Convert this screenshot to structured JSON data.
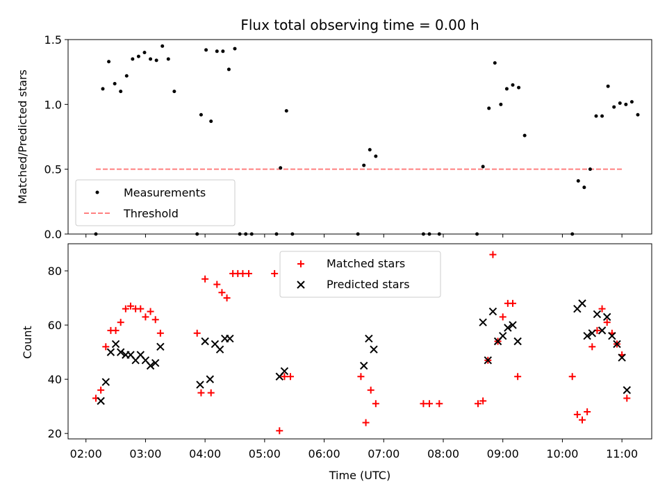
{
  "title": "Flux total observing time = 0.00 h",
  "xlabel": "Time (UTC)",
  "colors": {
    "measurement": "#000000",
    "threshold": "#ff8080",
    "matched": "#ff0000",
    "predicted": "#000000"
  },
  "chart_data": [
    {
      "type": "scatter",
      "ylabel": "Matched/Predicted stars",
      "ylim": [
        0,
        1.5
      ],
      "yticks": [
        "0.0",
        "0.5",
        "1.0",
        "1.5"
      ],
      "legend": {
        "placement": "lower-left",
        "entries": [
          "Measurements",
          "Threshold"
        ]
      },
      "threshold": {
        "value": 0.5,
        "x_range": [
          "02:10",
          "11:00"
        ]
      },
      "series": [
        {
          "name": "Measurements",
          "points": [
            [
              "02:10",
              0.0
            ],
            [
              "02:17",
              1.12
            ],
            [
              "02:23",
              1.33
            ],
            [
              "02:29",
              1.16
            ],
            [
              "02:35",
              1.1
            ],
            [
              "02:41",
              1.22
            ],
            [
              "02:47",
              1.35
            ],
            [
              "02:53",
              1.37
            ],
            [
              "02:59",
              1.4
            ],
            [
              "03:05",
              1.35
            ],
            [
              "03:11",
              1.34
            ],
            [
              "03:17",
              1.45
            ],
            [
              "03:23",
              1.35
            ],
            [
              "03:29",
              1.1
            ],
            [
              "03:52",
              0.0
            ],
            [
              "03:56",
              0.92
            ],
            [
              "04:01",
              1.42
            ],
            [
              "04:06",
              0.87
            ],
            [
              "04:12",
              1.41
            ],
            [
              "04:18",
              1.41
            ],
            [
              "04:24",
              1.27
            ],
            [
              "04:30",
              1.43
            ],
            [
              "04:35",
              0.0
            ],
            [
              "04:41",
              0.0
            ],
            [
              "04:47",
              0.0
            ],
            [
              "05:12",
              0.0
            ],
            [
              "05:16",
              0.51
            ],
            [
              "05:22",
              0.95
            ],
            [
              "05:28",
              0.0
            ],
            [
              "06:34",
              0.0
            ],
            [
              "06:40",
              0.53
            ],
            [
              "06:46",
              0.65
            ],
            [
              "06:52",
              0.6
            ],
            [
              "07:40",
              0.0
            ],
            [
              "07:46",
              0.0
            ],
            [
              "07:56",
              0.0
            ],
            [
              "08:34",
              0.0
            ],
            [
              "08:40",
              0.52
            ],
            [
              "08:46",
              0.97
            ],
            [
              "08:52",
              1.32
            ],
            [
              "08:58",
              1.0
            ],
            [
              "09:04",
              1.12
            ],
            [
              "09:10",
              1.15
            ],
            [
              "09:16",
              1.13
            ],
            [
              "09:22",
              0.76
            ],
            [
              "10:10",
              0.0
            ],
            [
              "10:16",
              0.41
            ],
            [
              "10:22",
              0.36
            ],
            [
              "10:28",
              0.5
            ],
            [
              "10:34",
              0.91
            ],
            [
              "10:40",
              0.91
            ],
            [
              "10:46",
              1.14
            ],
            [
              "10:52",
              0.98
            ],
            [
              "10:58",
              1.01
            ],
            [
              "11:04",
              1.0
            ],
            [
              "11:10",
              1.02
            ],
            [
              "11:16",
              0.92
            ]
          ]
        }
      ]
    },
    {
      "type": "scatter",
      "ylabel": "Count",
      "ylim": [
        18,
        90
      ],
      "yticks": [
        "20",
        "40",
        "60",
        "80"
      ],
      "xticks": [
        "02:00",
        "03:00",
        "04:00",
        "05:00",
        "06:00",
        "07:00",
        "08:00",
        "09:00",
        "10:00",
        "11:00"
      ],
      "xlim": [
        "01:42",
        "11:30"
      ],
      "legend": {
        "placement": "upper-center",
        "entries": [
          "Matched stars",
          "Predicted stars"
        ]
      },
      "series": [
        {
          "name": "Matched stars",
          "points": [
            [
              "02:10",
              33
            ],
            [
              "02:15",
              36
            ],
            [
              "02:20",
              52
            ],
            [
              "02:25",
              58
            ],
            [
              "02:30",
              58
            ],
            [
              "02:35",
              61
            ],
            [
              "02:40",
              66
            ],
            [
              "02:45",
              67
            ],
            [
              "02:50",
              66
            ],
            [
              "02:55",
              66
            ],
            [
              "03:00",
              63
            ],
            [
              "03:05",
              65
            ],
            [
              "03:10",
              62
            ],
            [
              "03:15",
              57
            ],
            [
              "03:52",
              57
            ],
            [
              "03:56",
              35
            ],
            [
              "04:00",
              77
            ],
            [
              "04:06",
              35
            ],
            [
              "04:12",
              75
            ],
            [
              "04:17",
              72
            ],
            [
              "04:22",
              70
            ],
            [
              "04:28",
              79
            ],
            [
              "04:33",
              79
            ],
            [
              "04:38",
              79
            ],
            [
              "04:44",
              79
            ],
            [
              "05:10",
              79
            ],
            [
              "05:15",
              21
            ],
            [
              "05:20",
              41
            ],
            [
              "05:26",
              41
            ],
            [
              "06:37",
              41
            ],
            [
              "06:42",
              24
            ],
            [
              "06:47",
              36
            ],
            [
              "06:52",
              31
            ],
            [
              "07:40",
              31
            ],
            [
              "07:46",
              31
            ],
            [
              "07:56",
              31
            ],
            [
              "08:35",
              31
            ],
            [
              "08:40",
              32
            ],
            [
              "08:45",
              47
            ],
            [
              "08:50",
              86
            ],
            [
              "08:55",
              54
            ],
            [
              "09:00",
              63
            ],
            [
              "09:05",
              68
            ],
            [
              "09:10",
              68
            ],
            [
              "09:15",
              41
            ],
            [
              "10:10",
              41
            ],
            [
              "10:15",
              27
            ],
            [
              "10:20",
              25
            ],
            [
              "10:25",
              28
            ],
            [
              "10:30",
              52
            ],
            [
              "10:35",
              58
            ],
            [
              "10:40",
              66
            ],
            [
              "10:45",
              61
            ],
            [
              "10:50",
              57
            ],
            [
              "10:55",
              53
            ],
            [
              "11:00",
              49
            ],
            [
              "11:05",
              33
            ]
          ]
        },
        {
          "name": "Predicted stars",
          "points": [
            [
              "02:15",
              32
            ],
            [
              "02:20",
              39
            ],
            [
              "02:25",
              50
            ],
            [
              "02:30",
              53
            ],
            [
              "02:35",
              50
            ],
            [
              "02:40",
              49
            ],
            [
              "02:45",
              49
            ],
            [
              "02:50",
              47
            ],
            [
              "02:55",
              49
            ],
            [
              "03:00",
              47
            ],
            [
              "03:05",
              45
            ],
            [
              "03:10",
              46
            ],
            [
              "03:15",
              52
            ],
            [
              "03:55",
              38
            ],
            [
              "04:00",
              54
            ],
            [
              "04:05",
              40
            ],
            [
              "04:10",
              53
            ],
            [
              "04:15",
              51
            ],
            [
              "04:20",
              55
            ],
            [
              "04:25",
              55
            ],
            [
              "05:15",
              41
            ],
            [
              "05:20",
              43
            ],
            [
              "06:40",
              45
            ],
            [
              "06:45",
              55
            ],
            [
              "06:50",
              51
            ],
            [
              "08:40",
              61
            ],
            [
              "08:45",
              47
            ],
            [
              "08:50",
              65
            ],
            [
              "08:55",
              54
            ],
            [
              "09:00",
              56
            ],
            [
              "09:05",
              59
            ],
            [
              "09:10",
              60
            ],
            [
              "09:15",
              54
            ],
            [
              "10:15",
              66
            ],
            [
              "10:20",
              68
            ],
            [
              "10:25",
              56
            ],
            [
              "10:30",
              57
            ],
            [
              "10:35",
              64
            ],
            [
              "10:40",
              58
            ],
            [
              "10:45",
              63
            ],
            [
              "10:50",
              56
            ],
            [
              "10:55",
              53
            ],
            [
              "11:00",
              48
            ],
            [
              "11:05",
              36
            ]
          ]
        }
      ]
    }
  ]
}
